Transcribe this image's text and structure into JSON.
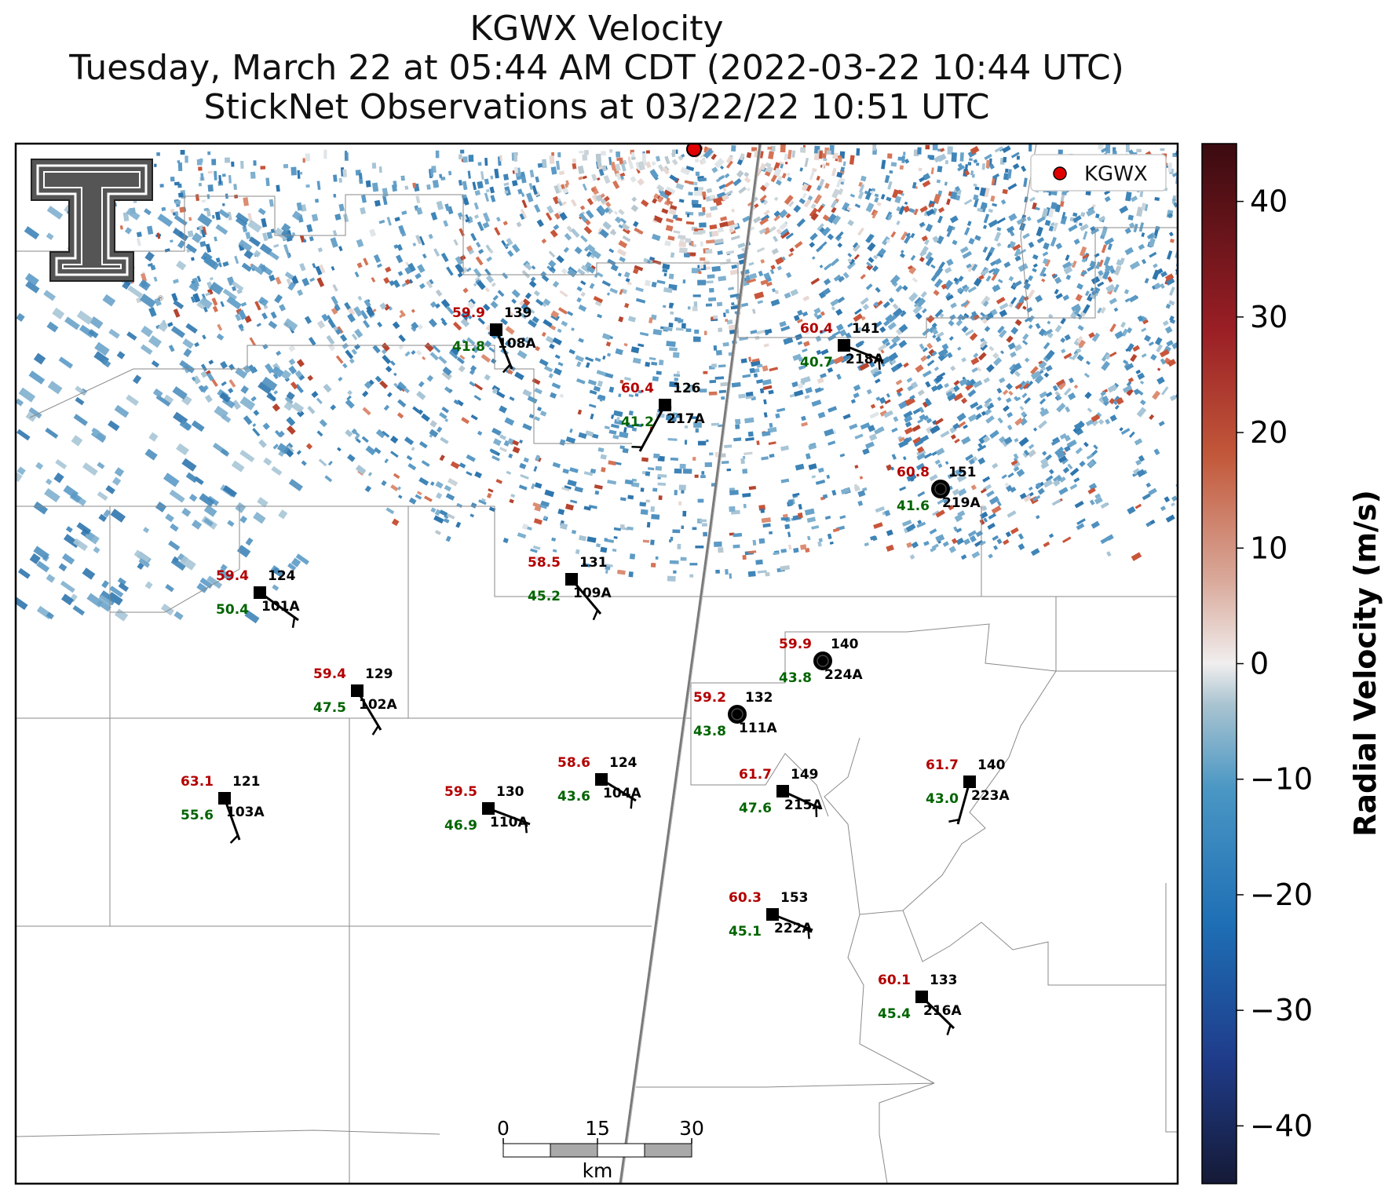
{
  "title": {
    "line1": "KGWX Velocity",
    "line2": "Tuesday, March 22 at 05:44 AM CDT (2022-03-22 10:44 UTC)",
    "line3": "StickNet Observations at 03/22/22 10:51 UTC"
  },
  "legend": {
    "label": "KGWX",
    "marker_color": "#e00000"
  },
  "colorbar": {
    "label": "Radial Velocity (m/s)",
    "ticks": [
      "40",
      "30",
      "20",
      "10",
      "0",
      "−10",
      "−20",
      "−30",
      "−40"
    ],
    "range": [
      -45,
      45
    ]
  },
  "scalebar": {
    "ticks": [
      "0",
      "15",
      "30"
    ],
    "unit": "km"
  },
  "colors": {
    "temperature": "#b30000",
    "dewpoint": "#006400",
    "id": "#000000"
  },
  "stations": [
    {
      "id": "108A",
      "temp": "59.9",
      "dew": "41.8",
      "num": "139",
      "symbol": "square"
    },
    {
      "id": "218A",
      "temp": "60.4",
      "dew": "40.7",
      "num": "141",
      "symbol": "square"
    },
    {
      "id": "217A",
      "temp": "60.4",
      "dew": "41.2",
      "num": "126",
      "symbol": "square"
    },
    {
      "id": "219A",
      "temp": "60.8",
      "dew": "41.6",
      "num": "151",
      "symbol": "circle"
    },
    {
      "id": "101A",
      "temp": "59.4",
      "dew": "50.4",
      "num": "124",
      "symbol": "square"
    },
    {
      "id": "109A",
      "temp": "58.5",
      "dew": "45.2",
      "num": "131",
      "symbol": "square"
    },
    {
      "id": "224A",
      "temp": "59.9",
      "dew": "43.8",
      "num": "140",
      "symbol": "circle"
    },
    {
      "id": "102A",
      "temp": "59.4",
      "dew": "47.5",
      "num": "129",
      "symbol": "square"
    },
    {
      "id": "111A",
      "temp": "59.2",
      "dew": "43.8",
      "num": "132",
      "symbol": "circle"
    },
    {
      "id": "103A",
      "temp": "63.1",
      "dew": "55.6",
      "num": "121",
      "symbol": "square"
    },
    {
      "id": "110A",
      "temp": "59.5",
      "dew": "46.9",
      "num": "130",
      "symbol": "square"
    },
    {
      "id": "104A",
      "temp": "58.6",
      "dew": "43.6",
      "num": "124",
      "symbol": "square"
    },
    {
      "id": "215A",
      "temp": "61.7",
      "dew": "47.6",
      "num": "149",
      "symbol": "square"
    },
    {
      "id": "223A",
      "temp": "61.7",
      "dew": "43.0",
      "num": "140",
      "symbol": "square"
    },
    {
      "id": "222A",
      "temp": "60.3",
      "dew": "45.1",
      "num": "153",
      "symbol": "square"
    },
    {
      "id": "216A",
      "temp": "60.1",
      "dew": "45.4",
      "num": "133",
      "symbol": "square"
    }
  ]
}
